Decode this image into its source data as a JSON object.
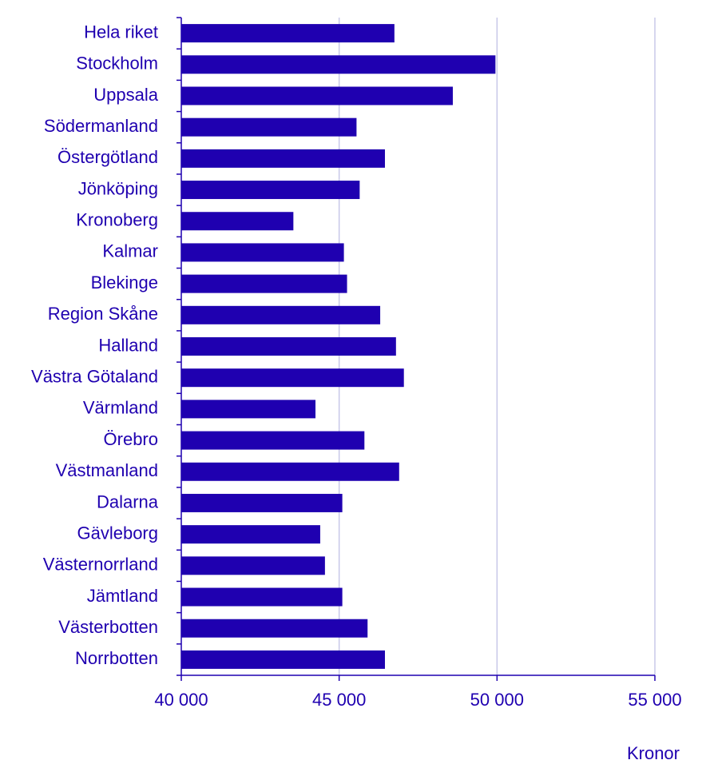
{
  "chart_data": {
    "type": "barh",
    "categories": [
      "Hela riket",
      "Stockholm",
      "Uppsala",
      "Södermanland",
      "Östergötland",
      "Jönköping",
      "Kronoberg",
      "Kalmar",
      "Blekinge",
      "Region Skåne",
      "Halland",
      "Västra Götaland",
      "Värmland",
      "Örebro",
      "Västmanland",
      "Dalarna",
      "Gävleborg",
      "Västernorrland",
      "Jämtland",
      "Västerbotten",
      "Norrbotten"
    ],
    "values": [
      46750,
      49950,
      48600,
      45550,
      46450,
      45650,
      43550,
      45150,
      45250,
      46300,
      46800,
      47050,
      44250,
      45800,
      46900,
      45100,
      44400,
      44550,
      45100,
      45900,
      46450
    ],
    "color": "#1f00b0",
    "xlim": [
      40000,
      55000
    ],
    "xticks": [
      {
        "value": 40000,
        "label": "40 000"
      },
      {
        "value": 45000,
        "label": "45 000"
      },
      {
        "value": 50000,
        "label": "50 000"
      },
      {
        "value": 55000,
        "label": "55 000"
      }
    ],
    "xlabel": "Kronor",
    "grid": true
  }
}
